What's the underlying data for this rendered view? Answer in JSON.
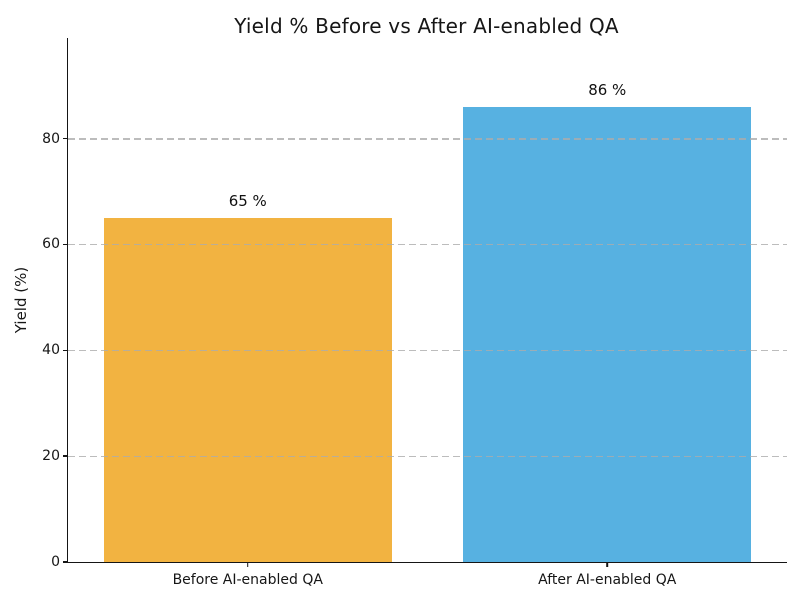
{
  "chart_data": {
    "type": "bar",
    "title": "Yield % Before vs After AI-enabled QA",
    "categories": [
      "Before AI-enabled QA",
      "After AI-enabled QA"
    ],
    "values": [
      65,
      86
    ],
    "value_labels": [
      "65 %",
      "86 %"
    ],
    "bar_colors": [
      "#F2B341",
      "#57B1E1"
    ],
    "bar_width": 0.8,
    "xlabel": "",
    "ylabel": "Yield (%)",
    "ylim": [
      0,
      99
    ],
    "yticks": [
      0,
      20,
      40,
      60,
      80
    ],
    "grid": "horizontal dashed gridlines drawn over bars",
    "legend": "none",
    "spines": "left and bottom only"
  },
  "colors": {
    "background": "#FFFFFF",
    "axis": "#151515",
    "grid": "#ACACAC",
    "text": "#161616"
  }
}
